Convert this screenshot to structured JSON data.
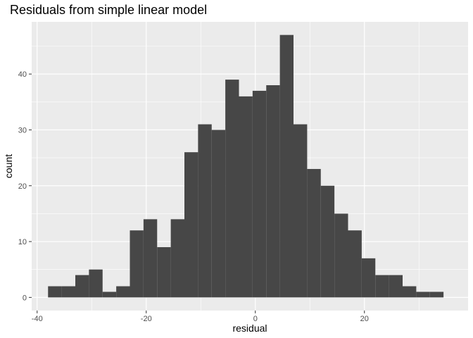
{
  "chart_data": {
    "type": "bar",
    "title": "Residuals from simple linear model",
    "xlabel": "residual",
    "ylabel": "count",
    "xlim": [
      -40,
      40
    ],
    "ylim": [
      0,
      50
    ],
    "x_ticks": [
      -40,
      -20,
      0,
      20
    ],
    "y_ticks": [
      0,
      10,
      20,
      30,
      40
    ],
    "grid": true,
    "bar_color": "#474747",
    "panel_background": "#EBEBEB",
    "grid_color": "#FFFFFF",
    "bin_width": 2.5,
    "bin_left_edges": [
      -38.0,
      -35.5,
      -33.0,
      -30.5,
      -28.0,
      -25.5,
      -23.0,
      -20.5,
      -18.0,
      -15.5,
      -13.0,
      -10.5,
      -8.0,
      -5.5,
      -3.0,
      -0.5,
      2.0,
      4.5,
      7.0,
      9.5,
      12.0,
      14.5,
      17.0,
      19.5,
      22.0,
      24.5,
      27.0,
      29.5,
      32.0
    ],
    "values": [
      2,
      2,
      4,
      5,
      1,
      2,
      12,
      14,
      9,
      14,
      26,
      31,
      30,
      39,
      36,
      37,
      38,
      47,
      31,
      23,
      20,
      15,
      12,
      7,
      4,
      4,
      2,
      1,
      1
    ]
  }
}
